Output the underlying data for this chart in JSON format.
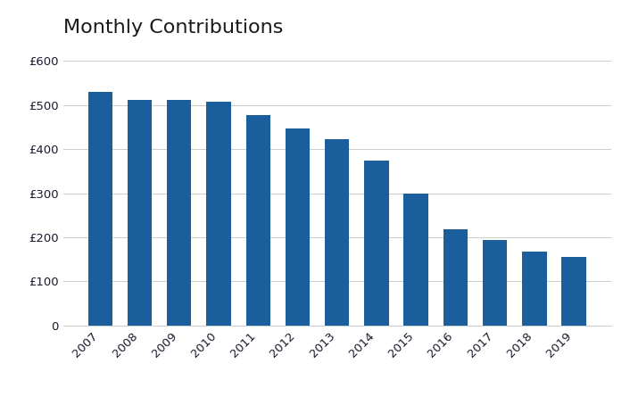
{
  "title": "Monthly Contributions",
  "categories": [
    "2007",
    "2008",
    "2009",
    "2010",
    "2011",
    "2012",
    "2013",
    "2014",
    "2015",
    "2016",
    "2017",
    "2018",
    "2019"
  ],
  "values": [
    530,
    512,
    512,
    507,
    477,
    447,
    422,
    373,
    299,
    218,
    193,
    167,
    155
  ],
  "bar_color": "#1a5e9b",
  "background_color": "#ffffff",
  "ylim": [
    0,
    630
  ],
  "yticks": [
    0,
    100,
    200,
    300,
    400,
    500,
    600
  ],
  "ytick_labels": [
    "0",
    "£100",
    "£200",
    "£300",
    "£400",
    "£500",
    "£600"
  ],
  "title_fontsize": 16,
  "tick_fontsize": 9.5,
  "grid_color": "#cccccc",
  "title_color": "#1a1a1a",
  "ytick_color": "#1a1a2e",
  "xtick_color": "#1a1a2e"
}
